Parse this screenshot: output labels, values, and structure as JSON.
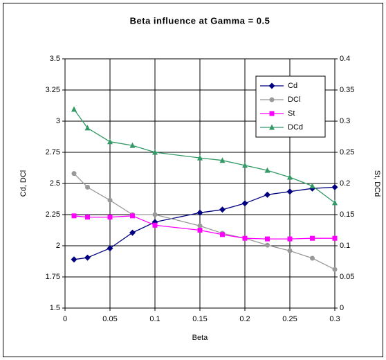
{
  "chart_data": {
    "type": "line",
    "title": "Beta influence at Gamma = 0.5",
    "x_label": "Beta",
    "y_label": "Cd, DCl",
    "y2_label": "St, DCd",
    "x": [
      0.01,
      0.025,
      0.05,
      0.075,
      0.1,
      0.15,
      0.175,
      0.2,
      0.225,
      0.25,
      0.275,
      0.3
    ],
    "series": [
      {
        "name": "Cd",
        "color": "#000080",
        "marker": "diamond",
        "axis": "y",
        "values": [
          1.89,
          1.905,
          1.98,
          2.105,
          2.19,
          2.265,
          2.29,
          2.34,
          2.41,
          2.435,
          2.46,
          2.47
        ]
      },
      {
        "name": "DCl",
        "color": "#999999",
        "marker": "circle",
        "axis": "y",
        "values": [
          2.58,
          2.47,
          2.365,
          2.25,
          2.25,
          2.16,
          2.1,
          2.06,
          2.005,
          1.96,
          1.9,
          1.81
        ]
      },
      {
        "name": "St",
        "color": "#ff00ff",
        "marker": "square",
        "axis": "y2",
        "values": [
          0.148,
          0.146,
          0.146,
          0.148,
          0.133,
          0.125,
          0.118,
          0.112,
          0.111,
          0.111,
          0.112,
          0.112
        ]
      },
      {
        "name": "DCd",
        "color": "#339966",
        "marker": "triangle",
        "axis": "y2",
        "values": [
          0.319,
          0.289,
          0.267,
          0.261,
          0.25,
          0.241,
          0.237,
          0.229,
          0.221,
          0.21,
          0.196,
          0.169
        ]
      }
    ],
    "xlim": [
      0,
      0.3
    ],
    "xticks": [
      0,
      0.05,
      0.1,
      0.15,
      0.2,
      0.25,
      0.3
    ],
    "ylim": [
      1.5,
      3.5
    ],
    "yticks": [
      1.5,
      1.75,
      2,
      2.25,
      2.5,
      2.75,
      3,
      3.25,
      3.5
    ],
    "y2lim": [
      0,
      0.4
    ],
    "y2ticks": [
      0,
      0.05,
      0.1,
      0.15,
      0.2,
      0.25,
      0.3,
      0.35,
      0.4
    ],
    "grid": true,
    "legend": "top-right"
  }
}
